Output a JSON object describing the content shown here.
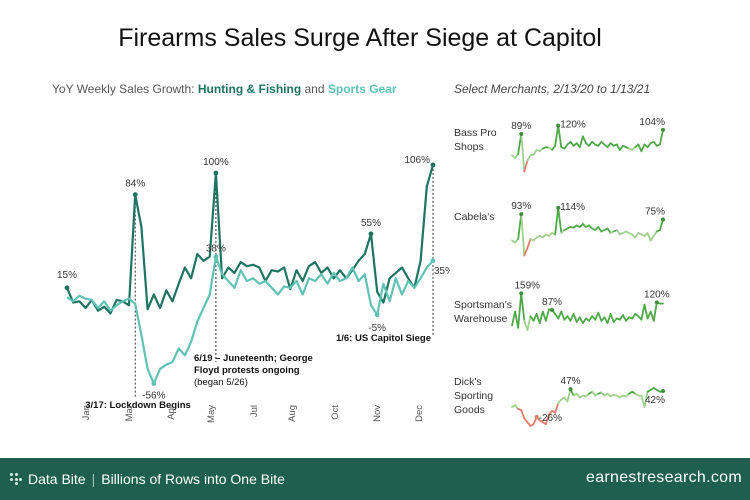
{
  "title": "Firearms Sales Surge After Siege at Capitol",
  "subtitle_left": {
    "prefix": "YoY Weekly Sales Growth: ",
    "series1": "Hunting & Fishing",
    "mid": " and ",
    "series2": "Sports Gear"
  },
  "subtitle_right": "Select Merchants, 2/13/20 to 1/13/21",
  "colors": {
    "hunting": "#1e7460",
    "sports": "#5fc2b4",
    "merchant_pos": "#4fa847",
    "merchant_neg": "#e07e69",
    "footer": "#1f5f4f"
  },
  "chart_data": [
    {
      "type": "line",
      "title": "",
      "xlabel": "",
      "ylabel": "",
      "x_ticks": [
        "Jan",
        "Mar",
        "Apr",
        "May",
        "Jul",
        "Aug",
        "Oct",
        "Nov",
        "Dec"
      ],
      "grid": false,
      "series": [
        {
          "name": "Hunting & Fishing",
          "values": [
            15,
            4,
            5,
            0,
            6,
            -2,
            1,
            -4,
            6,
            5,
            2,
            84,
            60,
            -1,
            10,
            0,
            13,
            5,
            18,
            30,
            22,
            40,
            35,
            38,
            100,
            22,
            30,
            26,
            34,
            31,
            32,
            30,
            20,
            28,
            27,
            30,
            14,
            28,
            20,
            31,
            34,
            26,
            30,
            22,
            28,
            22,
            28,
            35,
            40,
            55,
            12,
            4,
            22,
            26,
            30,
            22,
            15,
            35,
            90,
            106
          ],
          "point_labels": [
            {
              "index": 0,
              "text": "15%"
            },
            {
              "index": 11,
              "text": "84%"
            },
            {
              "index": 24,
              "text": "100%"
            },
            {
              "index": 49,
              "text": "55%"
            },
            {
              "index": 59,
              "text": "106%"
            }
          ]
        },
        {
          "name": "Sports Gear",
          "values": [
            8,
            5,
            9,
            7,
            6,
            0,
            5,
            -2,
            2,
            5,
            7,
            3,
            -20,
            -45,
            -56,
            -45,
            -42,
            -40,
            -30,
            -35,
            -25,
            -10,
            0,
            10,
            38,
            25,
            20,
            15,
            28,
            20,
            22,
            18,
            20,
            15,
            10,
            16,
            15,
            20,
            10,
            22,
            20,
            25,
            18,
            26,
            20,
            22,
            30,
            20,
            25,
            2,
            -5,
            18,
            5,
            22,
            10,
            20,
            15,
            22,
            30,
            35
          ],
          "point_labels": [
            {
              "index": 14,
              "text": "-56%"
            },
            {
              "index": 24,
              "text": "38%"
            },
            {
              "index": 50,
              "text": "-5%"
            },
            {
              "index": 59,
              "text": "35%"
            }
          ]
        }
      ],
      "annotations": [
        {
          "index": 11,
          "text": "3/17: Lockdown Begins"
        },
        {
          "index": 24,
          "text_bold": "6/19 – Juneteenth; George",
          "text_bold2": "Floyd protests ongoing",
          "text_normal": "(began 5/26)"
        },
        {
          "index": 59,
          "text": "1/6: US Capitol Siege"
        }
      ]
    },
    {
      "type": "line",
      "title": "Select Merchants, 2/13/20 to 1/13/21",
      "panels": [
        {
          "label_line1": "Bass Pro",
          "label_line2": "Shops",
          "values": [
            10,
            0,
            15,
            89,
            -50,
            -10,
            10,
            12,
            30,
            25,
            35,
            40,
            38,
            30,
            45,
            120,
            40,
            35,
            50,
            60,
            45,
            55,
            40,
            80,
            55,
            45,
            60,
            50,
            45,
            60,
            50,
            40,
            55,
            45,
            50,
            30,
            45,
            40,
            35,
            30,
            40,
            50,
            25,
            50,
            40,
            55,
            60,
            45,
            50,
            104
          ],
          "labels": [
            {
              "index": 3,
              "text": "89%"
            },
            {
              "index": 15,
              "text": "120%"
            },
            {
              "index": 49,
              "text": "104%"
            }
          ]
        },
        {
          "label_line1": "Cabela's",
          "label_line2": "",
          "values": [
            5,
            -2,
            10,
            93,
            -45,
            -20,
            10,
            5,
            15,
            20,
            15,
            25,
            20,
            30,
            25,
            114,
            30,
            40,
            45,
            50,
            48,
            55,
            50,
            60,
            50,
            55,
            45,
            40,
            50,
            35,
            40,
            45,
            30,
            35,
            40,
            25,
            30,
            35,
            30,
            25,
            15,
            30,
            25,
            20,
            30,
            5,
            20,
            35,
            40,
            75
          ],
          "labels": [
            {
              "index": 3,
              "text": "93%"
            },
            {
              "index": 15,
              "text": "114%"
            },
            {
              "index": 49,
              "text": "75%"
            }
          ]
        },
        {
          "label_line1": "Sportsman's",
          "label_line2": "Warehouse",
          "values": [
            20,
            80,
            10,
            159,
            40,
            0,
            60,
            40,
            70,
            30,
            80,
            40,
            90,
            87,
            70,
            50,
            80,
            45,
            60,
            40,
            70,
            35,
            55,
            30,
            50,
            40,
            60,
            45,
            75,
            40,
            55,
            30,
            70,
            35,
            50,
            45,
            65,
            40,
            55,
            50,
            70,
            60,
            45,
            110,
            50,
            80,
            40,
            120,
            115,
            115
          ],
          "labels": [
            {
              "index": 3,
              "text": "159%"
            },
            {
              "index": 13,
              "text": "87%"
            },
            {
              "index": 47,
              "text": "120%"
            }
          ]
        },
        {
          "label_line1": "Dick's",
          "label_line2": "Sporting",
          "label_line3": "Goods",
          "values": [
            0,
            5,
            -5,
            -8,
            -30,
            -40,
            -50,
            -45,
            -26,
            -35,
            -40,
            -45,
            -20,
            -10,
            -15,
            10,
            20,
            25,
            15,
            47,
            30,
            35,
            25,
            30,
            28,
            35,
            40,
            30,
            35,
            38,
            30,
            35,
            28,
            32,
            30,
            25,
            30,
            28,
            35,
            40,
            35,
            30,
            30,
            0,
            40,
            45,
            50,
            45,
            40,
            42
          ],
          "labels": [
            {
              "index": 8,
              "text": "-26%"
            },
            {
              "index": 19,
              "text": "47%"
            },
            {
              "index": 49,
              "text": "42%"
            }
          ]
        }
      ]
    }
  ],
  "footer": {
    "brand": "Data Bite",
    "tagline": "Billions of Rows into One Bite",
    "site": "earnestresearch.com"
  }
}
